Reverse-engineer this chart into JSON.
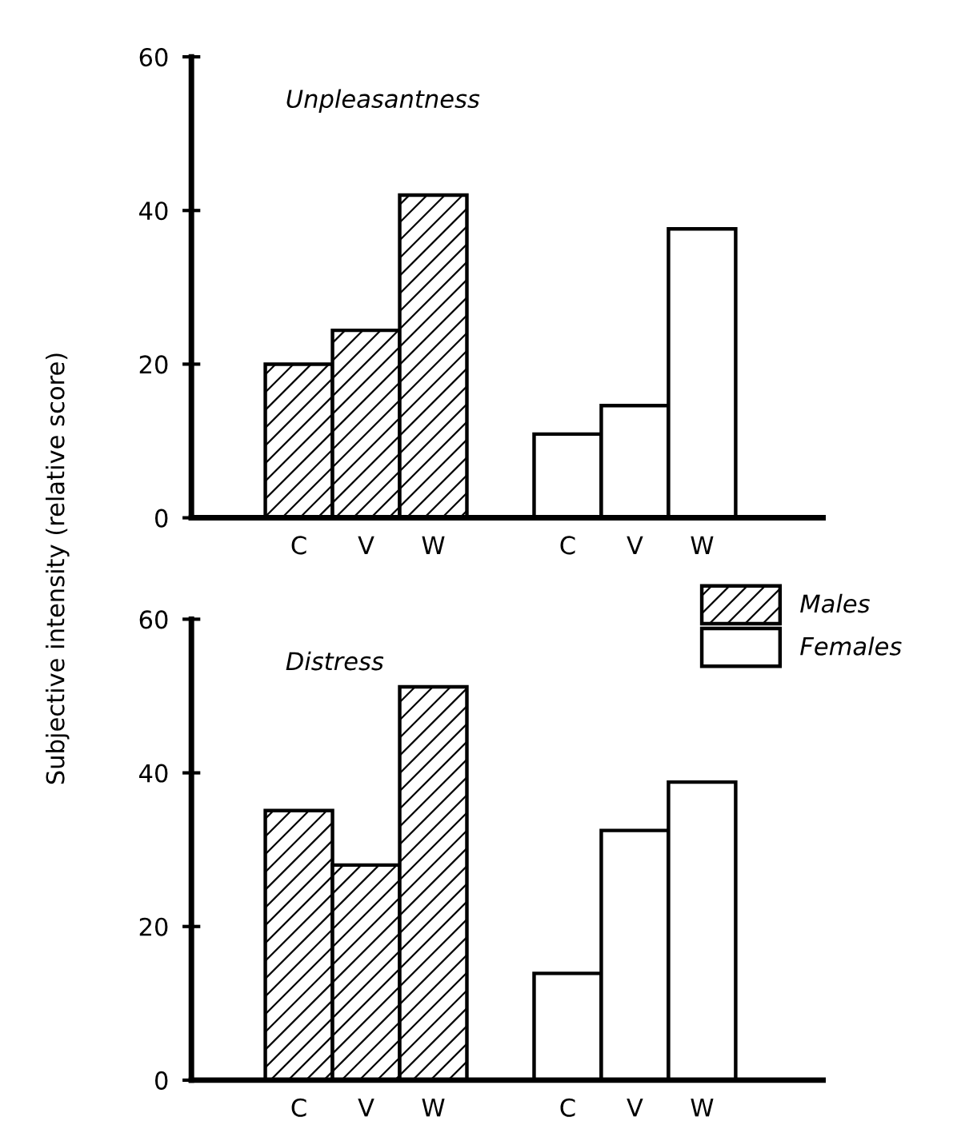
{
  "chart_data": [
    {
      "type": "bar",
      "title": "Unpleasantness",
      "ylabel": "Subjective intensity (relative score)",
      "categories": [
        "C",
        "V",
        "W",
        null,
        "C",
        "V",
        "W"
      ],
      "series": [
        {
          "name": "Males",
          "color": "#000000",
          "values": [
            20,
            24.4,
            42.0,
            null,
            null,
            null,
            null
          ]
        },
        {
          "name": "Females",
          "color": "#ffffff",
          "values": [
            null,
            null,
            null,
            null,
            10.9,
            14.6,
            37.6
          ]
        }
      ],
      "ylim": [
        0,
        60
      ],
      "yticks": [
        0,
        20,
        40,
        60
      ],
      "legend": "bottom right"
    },
    {
      "type": "bar",
      "title": "Distress",
      "categories": [
        "C",
        "V",
        "W",
        null,
        "C",
        "V",
        "W"
      ],
      "series": [
        {
          "color": "#000000",
          "values": [
            35.1,
            28.0,
            51.2,
            null,
            null,
            null,
            null
          ]
        },
        {
          "color": "#ffffff",
          "values": [
            null,
            null,
            null,
            null,
            13.9,
            32.5,
            38.8
          ]
        }
      ],
      "ylim": [
        0,
        60
      ],
      "yticks": [
        0,
        20,
        40,
        60
      ]
    }
  ]
}
